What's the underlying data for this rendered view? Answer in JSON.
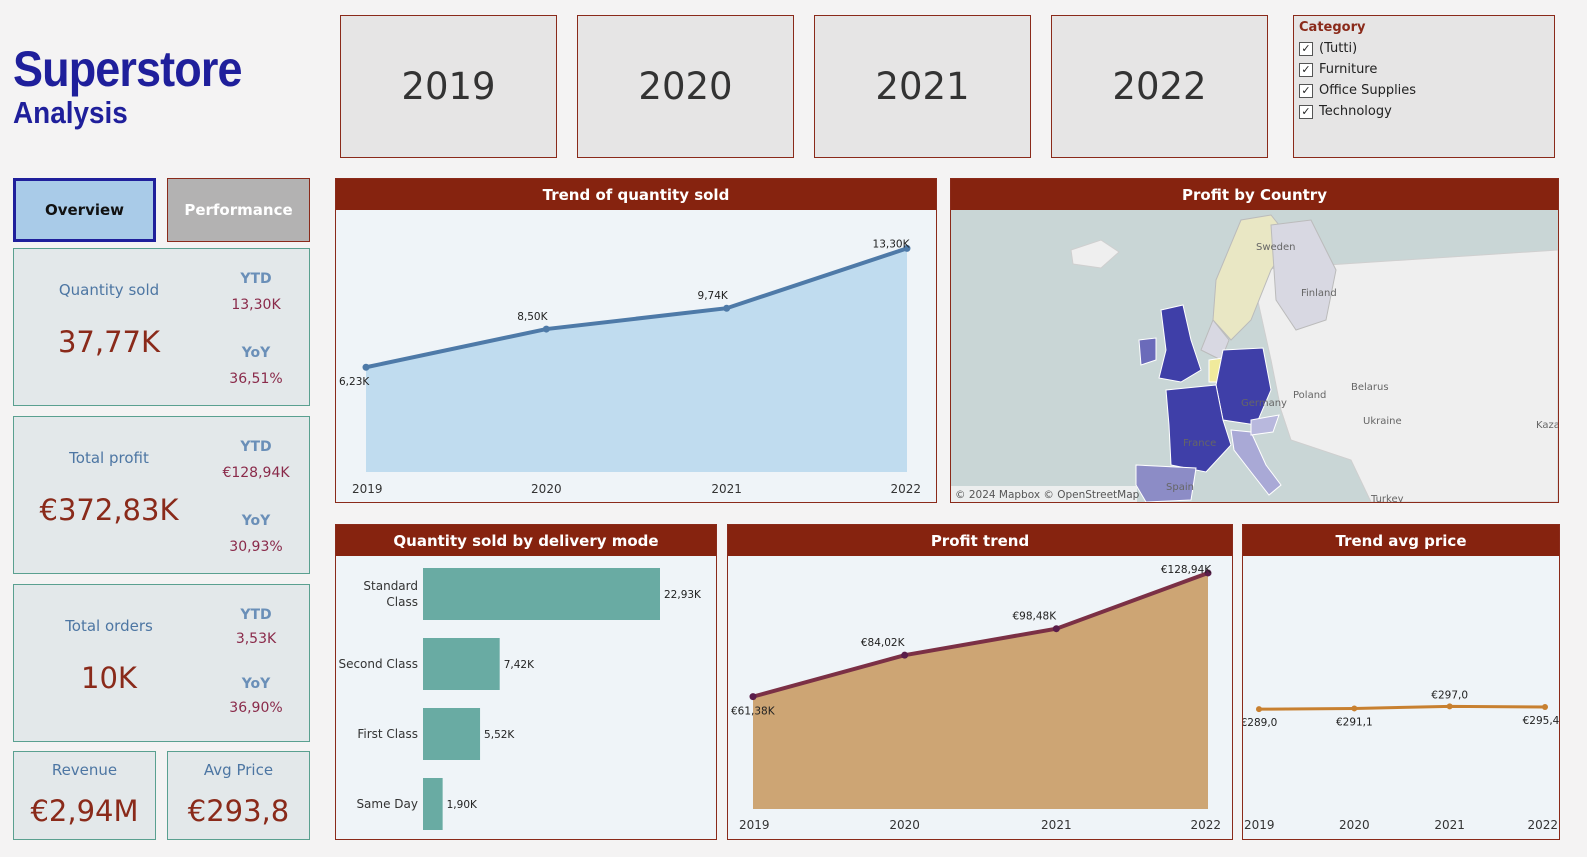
{
  "header": {
    "title_line1": "Superstore",
    "title_line2": "Analysis"
  },
  "years": [
    "2019",
    "2020",
    "2021",
    "2022"
  ],
  "category_filter": {
    "title": "Category",
    "items": [
      {
        "label": "(Tutti)",
        "checked": true
      },
      {
        "label": "Furniture",
        "checked": true
      },
      {
        "label": "Office Supplies",
        "checked": true
      },
      {
        "label": "Technology",
        "checked": true
      }
    ]
  },
  "nav": {
    "overview": "Overview",
    "performance": "Performance"
  },
  "kpis": {
    "quantity": {
      "label": "Quantity sold",
      "value": "37,77K",
      "ytd_label": "YTD",
      "ytd": "13,30K",
      "yoy_label": "YoY",
      "yoy": "36,51%"
    },
    "profit": {
      "label": "Total profit",
      "value": "€372,83K",
      "ytd_label": "YTD",
      "ytd": "€128,94K",
      "yoy_label": "YoY",
      "yoy": "30,93%"
    },
    "orders": {
      "label": "Total orders",
      "value": "10K",
      "ytd_label": "YTD",
      "ytd": "3,53K",
      "yoy_label": "YoY",
      "yoy": "36,90%"
    },
    "revenue": {
      "label": "Revenue",
      "value": "€2,94M"
    },
    "avg_price": {
      "label": "Avg Price",
      "value": "€293,8"
    }
  },
  "panels": {
    "qty_trend": "Trend of quantity sold",
    "profit_country": "Profit by Country",
    "delivery": "Quantity sold by delivery mode",
    "profit_trend": "Profit trend",
    "avg_price": "Trend avg price"
  },
  "map": {
    "attribution": "© 2024 Mapbox  © OpenStreetMap",
    "labels": [
      "Poland",
      "Belarus",
      "Ukraine",
      "Turkey",
      "France",
      "Spain",
      "Finland",
      "Sweden",
      "Germany",
      "Kaza"
    ]
  },
  "colors": {
    "accent": "#86230f",
    "title": "#1f1f9b",
    "qty_line": "#4e7aa8",
    "qty_area": "#c0dcef",
    "bar": "#69aba3",
    "profit_line": "#7b3045",
    "profit_area": "#cda574",
    "avg_line": "#c88030"
  },
  "chart_data": [
    {
      "type": "area",
      "title": "Trend of quantity sold",
      "x": [
        "2019",
        "2020",
        "2021",
        "2022"
      ],
      "values": [
        6.23,
        8.5,
        9.74,
        13.3
      ],
      "data_labels": [
        "6,23K",
        "8,50K",
        "9,74K",
        "13,30K"
      ],
      "ylim": [
        0,
        13.5
      ]
    },
    {
      "type": "bar",
      "title": "Quantity sold by delivery mode",
      "categories": [
        "Standard Class",
        "Second Class",
        "First Class",
        "Same Day"
      ],
      "category_lines": [
        [
          "Standard",
          "Class"
        ],
        [
          "Second Class"
        ],
        [
          "First Class"
        ],
        [
          "Same Day"
        ]
      ],
      "values": [
        22.93,
        7.42,
        5.52,
        1.9
      ],
      "data_labels": [
        "22,93K",
        "7,42K",
        "5,52K",
        "1,90K"
      ]
    },
    {
      "type": "area",
      "title": "Profit trend",
      "x": [
        "2019",
        "2020",
        "2021",
        "2022"
      ],
      "values": [
        61.38,
        84.02,
        98.48,
        128.94
      ],
      "data_labels": [
        "€61,38K",
        "€84,02K",
        "€98,48K",
        "€128,94K"
      ],
      "ylim": [
        0,
        130
      ]
    },
    {
      "type": "line",
      "title": "Trend avg price",
      "x": [
        "2019",
        "2020",
        "2021",
        "2022"
      ],
      "values": [
        289.0,
        291.1,
        297.0,
        295.4
      ],
      "data_labels": [
        "€289,0",
        "€291,1",
        "€297,0",
        "€295,4"
      ],
      "ylim": [
        0,
        660
      ]
    }
  ]
}
